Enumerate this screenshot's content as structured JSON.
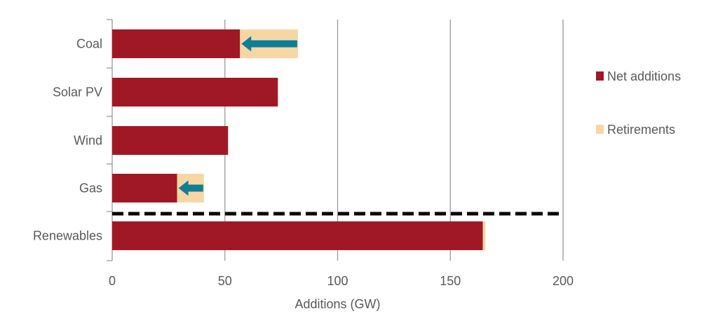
{
  "chart_data": {
    "type": "bar",
    "orientation": "horizontal",
    "stacked": true,
    "categories": [
      "Coal",
      "Solar PV",
      "Wind",
      "Gas",
      "Renewables"
    ],
    "series": [
      {
        "name": "Net additions",
        "color": "#A01826",
        "values": [
          56.7,
          73.5,
          51.4,
          28.8,
          164.4
        ]
      },
      {
        "name": "Retirements",
        "color": "#F6D7A4",
        "values": [
          25.7,
          0,
          0,
          11.9,
          1.2
        ]
      }
    ],
    "arrows_on": [
      "Coal",
      "Gas"
    ],
    "arrow_color": "#0F7F97",
    "separator_after": "Gas",
    "xlabel": "Additions (GW)",
    "xlim": [
      0,
      200
    ],
    "xticks": [
      0,
      50,
      100,
      150,
      200
    ],
    "grid": true,
    "legend_position": "right"
  }
}
